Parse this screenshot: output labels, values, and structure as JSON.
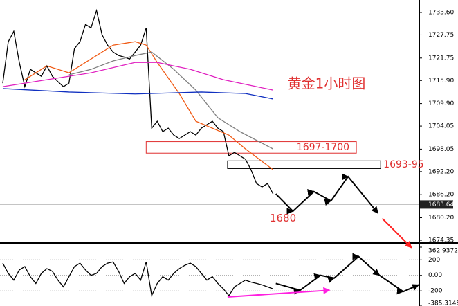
{
  "chart_data": [
    {
      "type": "line",
      "title": "黄金1小时图",
      "x": [
        0,
        1,
        2,
        3,
        4,
        5,
        6,
        7,
        8,
        9,
        10,
        11,
        12,
        13,
        14,
        15,
        16,
        17,
        18,
        19,
        20,
        21,
        22,
        23,
        24,
        25,
        26,
        27,
        28,
        29,
        30,
        31,
        32,
        33,
        34,
        35,
        36,
        37,
        38,
        39,
        40,
        41,
        42,
        43,
        44,
        45,
        46,
        47,
        48,
        49
      ],
      "xlim": [
        -0.5,
        75.5
      ],
      "series": [
        {
          "color": "#000000",
          "values": [
            1715.2,
            1726,
            1728.7,
            1720.6,
            1714.3,
            1718.8,
            1717.9,
            1717,
            1719.7,
            1717,
            1715.6,
            1714.3,
            1715.2,
            1724.2,
            1726,
            1730.5,
            1729.6,
            1734.1,
            1727.8,
            1725.1,
            1723.3,
            1722.4,
            1722,
            1721.5,
            1723.3,
            1725.1,
            1729.6,
            1703.5,
            1705.3,
            1702.6,
            1703.5,
            1701.7,
            1700.8,
            1701.7,
            1702.6,
            1701.7,
            1703.5,
            1704.4,
            1705.3,
            1703.5,
            1702.6,
            1696.3,
            1697.2,
            1696.3,
            1695.4,
            1692.7,
            1689.1,
            1688.2,
            1689.1,
            1686.4
          ]
        },
        {
          "color": "#f05a14",
          "x": [
            4,
            8,
            12,
            16,
            20,
            24,
            26,
            28,
            32,
            35,
            38,
            41,
            44,
            49
          ],
          "values": [
            1716.1,
            1719.7,
            1717.9,
            1721.5,
            1725.1,
            1726,
            1725.1,
            1720.6,
            1712.5,
            1705.3,
            1703.5,
            1701.7,
            1698.1,
            1692.7
          ]
        },
        {
          "color": "#808080",
          "x": [
            12,
            16,
            20,
            24,
            27,
            31,
            35,
            39,
            43,
            49
          ],
          "values": [
            1717.4,
            1718.8,
            1721,
            1722.4,
            1723.3,
            1718.8,
            1713.4,
            1706.2,
            1702.6,
            1698.1
          ]
        },
        {
          "color": "#e020c0",
          "x": [
            0,
            8,
            16,
            24,
            28,
            34,
            40,
            46,
            49
          ],
          "values": [
            1714.3,
            1716.1,
            1717.9,
            1720.6,
            1720.6,
            1718.8,
            1716.1,
            1714.3,
            1713.4
          ]
        },
        {
          "color": "#1030c0",
          "x": [
            0,
            12,
            24,
            36,
            44,
            49
          ],
          "values": [
            1713.8,
            1712.9,
            1712.4,
            1712.9,
            1712.5,
            1711.1
          ]
        }
      ],
      "projections": [
        {
          "color": "#000000",
          "x": [
            49.5,
            52.6,
            56.4,
            59.5,
            62.6,
            68
          ],
          "values": [
            1686.4,
            1681.9,
            1687,
            1684.6,
            1690.9,
            1681.4
          ]
        },
        {
          "color": "#ff2020",
          "x": [
            68.8,
            74.1
          ],
          "values": [
            1680,
            1672.4
          ]
        }
      ],
      "zones": [
        {
          "low": 1697,
          "high": 1700,
          "x_from": 26,
          "x_to": 64.1,
          "label": "1697-1700"
        },
        {
          "low": 1693,
          "high": 1695,
          "x_from": 40.75,
          "x_to": 68.5,
          "label": "1693-95"
        }
      ],
      "target": 1680,
      "current_price": 1683.64,
      "ylim": [
        1673.81,
        1736.84
      ],
      "yticks": [
        {
          "value": 1733.6,
          "label": "1733.60"
        },
        1727.75,
        1721.75,
        {
          "value": 1715.9,
          "label": "1715.90"
        },
        {
          "value": 1709.9,
          "label": "1709.90"
        },
        1704.05,
        1698.05,
        {
          "value": 1692.2,
          "label": "1692.20"
        },
        {
          "value": 1686.2,
          "label": "1686.20"
        },
        {
          "value": 1680.2,
          "label": "1680.20"
        },
        1674.35
      ]
    },
    {
      "type": "line",
      "x": [
        0,
        1,
        2,
        3,
        4,
        5,
        6,
        7,
        8,
        9,
        10,
        11,
        12,
        13,
        14,
        15,
        16,
        17,
        18,
        19,
        20,
        21,
        22,
        23,
        24,
        25,
        26,
        27,
        28,
        29,
        30,
        31,
        32,
        33,
        34,
        35,
        36,
        37,
        38,
        39,
        40,
        41,
        42,
        43,
        44,
        45,
        46,
        47,
        48,
        49
      ],
      "xlim": [
        -0.5,
        75.5
      ],
      "series": [
        {
          "color": "#000000",
          "values": [
            157,
            26,
            -61,
            70,
            113,
            -17,
            -104,
            26,
            87,
            52,
            -61,
            -148,
            -17,
            113,
            157,
            70,
            0,
            26,
            113,
            157,
            174,
            52,
            -104,
            -17,
            26,
            -61,
            174,
            -261,
            -104,
            -17,
            -61,
            26,
            87,
            130,
            157,
            113,
            26,
            -61,
            -17,
            -104,
            -174,
            -261,
            -148,
            -104,
            -61,
            -87,
            -104,
            -122,
            -148,
            -174
          ]
        }
      ],
      "projections": [
        {
          "color": "#000000",
          "x": [
            49.5,
            53.9,
            57.6,
            60.1,
            64.5,
            68.3,
            72.6,
            75.4
          ],
          "values": [
            -104,
            -191,
            0,
            -35,
            243,
            0,
            -209,
            -122
          ]
        },
        {
          "color": "#ff20e0",
          "x": [
            40.75,
            59.25
          ],
          "values": [
            -278,
            -191
          ]
        }
      ],
      "ylim": [
        -385.3148,
        362.9372
      ],
      "yticks": [
        362.9372,
        200,
        {
          "value": 0,
          "label": "0.00"
        },
        -200,
        -385.3148
      ],
      "grid": true
    }
  ]
}
